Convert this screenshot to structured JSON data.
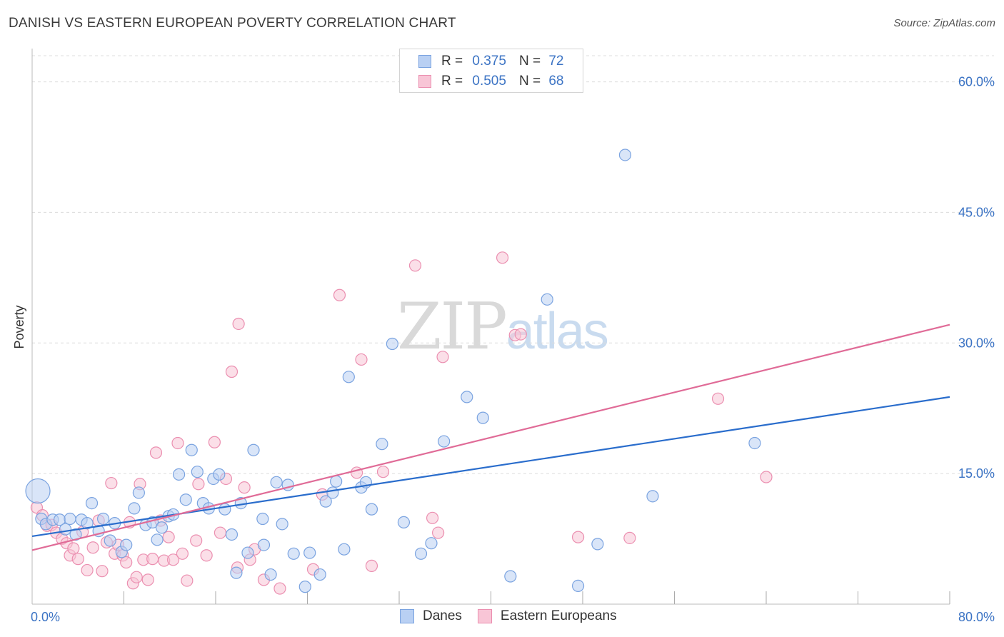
{
  "title": "DANISH VS EASTERN EUROPEAN POVERTY CORRELATION CHART",
  "source": "Source: ZipAtlas.com",
  "watermark": {
    "zip": "ZIP",
    "atlas": "atlas"
  },
  "legend_top": [
    {
      "r_label": "R =",
      "r_value": "0.375",
      "n_label": "N =",
      "n_value": "72"
    },
    {
      "r_label": "R =",
      "r_value": "0.505",
      "n_label": "N =",
      "n_value": "68"
    }
  ],
  "colors": {
    "danes_fill": "#b9d0f3",
    "danes_stroke": "#7aa3e0",
    "danes_line": "#2a6dcc",
    "ee_fill": "#f8c5d6",
    "ee_stroke": "#eb8fb0",
    "ee_line": "#e06b97",
    "grid": "#dcdcdc",
    "tick_text": "#3b73c4"
  },
  "chart_data": {
    "type": "scatter",
    "title": "DANISH VS EASTERN EUROPEAN POVERTY CORRELATION CHART",
    "xlabel": "",
    "ylabel": "Poverty",
    "xlim": [
      0,
      80
    ],
    "ylim": [
      0,
      63
    ],
    "x_tick_labels": [
      "0.0%",
      "80.0%"
    ],
    "y_ticks": [
      15,
      30,
      45,
      60
    ],
    "y_tick_labels": [
      "15.0%",
      "30.0%",
      "45.0%",
      "60.0%"
    ],
    "grid": true,
    "legend": "bottom-center",
    "series": [
      {
        "name": "Danes",
        "r": 0.375,
        "n": 72,
        "trend": [
          [
            0,
            7.8
          ],
          [
            80,
            23.8
          ]
        ],
        "points": [
          [
            0.5,
            13.0
          ],
          [
            0.8,
            9.8
          ],
          [
            1.2,
            9.2
          ],
          [
            1.8,
            9.7
          ],
          [
            2.4,
            9.7
          ],
          [
            2.9,
            8.6
          ],
          [
            3.3,
            9.8
          ],
          [
            3.8,
            8.0
          ],
          [
            4.3,
            9.7
          ],
          [
            4.8,
            9.3
          ],
          [
            5.2,
            11.6
          ],
          [
            5.8,
            8.4
          ],
          [
            6.2,
            9.8
          ],
          [
            6.8,
            7.3
          ],
          [
            7.2,
            9.3
          ],
          [
            7.8,
            6.0
          ],
          [
            8.2,
            6.8
          ],
          [
            8.9,
            11.0
          ],
          [
            9.3,
            12.8
          ],
          [
            9.9,
            9.1
          ],
          [
            10.5,
            9.4
          ],
          [
            10.9,
            7.4
          ],
          [
            11.3,
            8.8
          ],
          [
            11.9,
            10.1
          ],
          [
            12.3,
            10.3
          ],
          [
            12.8,
            14.9
          ],
          [
            13.4,
            12.0
          ],
          [
            13.9,
            17.7
          ],
          [
            14.4,
            15.2
          ],
          [
            14.9,
            11.6
          ],
          [
            15.4,
            11.0
          ],
          [
            15.8,
            14.4
          ],
          [
            16.3,
            14.9
          ],
          [
            16.8,
            10.9
          ],
          [
            17.4,
            8.0
          ],
          [
            17.8,
            3.6
          ],
          [
            18.2,
            11.6
          ],
          [
            18.8,
            5.9
          ],
          [
            19.3,
            17.7
          ],
          [
            20.1,
            9.8
          ],
          [
            20.2,
            6.8
          ],
          [
            20.8,
            3.4
          ],
          [
            21.3,
            14.0
          ],
          [
            21.8,
            9.2
          ],
          [
            22.3,
            13.7
          ],
          [
            22.8,
            5.8
          ],
          [
            23.8,
            2.0
          ],
          [
            24.2,
            5.9
          ],
          [
            25.1,
            3.4
          ],
          [
            25.6,
            11.8
          ],
          [
            26.2,
            12.8
          ],
          [
            26.5,
            14.1
          ],
          [
            27.2,
            6.3
          ],
          [
            27.6,
            26.1
          ],
          [
            28.7,
            13.4
          ],
          [
            29.1,
            14.0
          ],
          [
            29.6,
            10.9
          ],
          [
            30.5,
            18.4
          ],
          [
            31.4,
            29.9
          ],
          [
            32.4,
            9.4
          ],
          [
            33.9,
            5.8
          ],
          [
            34.8,
            7.0
          ],
          [
            35.9,
            18.7
          ],
          [
            37.9,
            23.8
          ],
          [
            39.3,
            21.4
          ],
          [
            41.7,
            3.2
          ],
          [
            44.9,
            35.0
          ],
          [
            47.6,
            2.1
          ],
          [
            49.3,
            6.9
          ],
          [
            51.7,
            51.6
          ],
          [
            54.1,
            12.4
          ],
          [
            63.0,
            18.5
          ]
        ]
      },
      {
        "name": "Eastern Europeans",
        "r": 0.505,
        "n": 68,
        "trend": [
          [
            0,
            6.2
          ],
          [
            80,
            32.1
          ]
        ],
        "points": [
          [
            0.4,
            11.1
          ],
          [
            0.9,
            10.2
          ],
          [
            1.3,
            9.0
          ],
          [
            1.7,
            9.1
          ],
          [
            2.1,
            8.2
          ],
          [
            2.6,
            7.5
          ],
          [
            3.0,
            7.0
          ],
          [
            3.3,
            5.6
          ],
          [
            3.6,
            6.4
          ],
          [
            4.0,
            5.2
          ],
          [
            4.4,
            8.3
          ],
          [
            4.8,
            3.9
          ],
          [
            5.3,
            6.5
          ],
          [
            5.8,
            9.6
          ],
          [
            6.1,
            3.8
          ],
          [
            6.5,
            7.1
          ],
          [
            6.9,
            13.9
          ],
          [
            7.2,
            5.8
          ],
          [
            7.5,
            6.8
          ],
          [
            7.9,
            5.6
          ],
          [
            8.2,
            4.8
          ],
          [
            8.5,
            9.4
          ],
          [
            8.8,
            2.4
          ],
          [
            9.1,
            3.1
          ],
          [
            9.4,
            13.8
          ],
          [
            9.7,
            5.1
          ],
          [
            10.1,
            2.8
          ],
          [
            10.5,
            5.2
          ],
          [
            10.8,
            17.4
          ],
          [
            11.2,
            9.6
          ],
          [
            11.5,
            5.0
          ],
          [
            11.9,
            7.7
          ],
          [
            12.3,
            5.1
          ],
          [
            12.7,
            18.5
          ],
          [
            13.1,
            5.8
          ],
          [
            13.5,
            2.7
          ],
          [
            14.3,
            7.3
          ],
          [
            14.5,
            13.8
          ],
          [
            15.2,
            5.6
          ],
          [
            15.9,
            18.6
          ],
          [
            16.4,
            8.2
          ],
          [
            16.9,
            14.4
          ],
          [
            17.4,
            26.7
          ],
          [
            17.9,
            4.2
          ],
          [
            18.0,
            32.2
          ],
          [
            18.5,
            13.4
          ],
          [
            19.0,
            5.1
          ],
          [
            19.4,
            6.3
          ],
          [
            20.2,
            2.8
          ],
          [
            21.6,
            1.8
          ],
          [
            24.5,
            4.0
          ],
          [
            25.3,
            12.6
          ],
          [
            26.8,
            35.5
          ],
          [
            28.3,
            15.1
          ],
          [
            28.7,
            28.1
          ],
          [
            29.6,
            4.4
          ],
          [
            30.6,
            15.2
          ],
          [
            33.4,
            38.9
          ],
          [
            34.9,
            9.9
          ],
          [
            35.4,
            8.2
          ],
          [
            35.8,
            28.4
          ],
          [
            41.0,
            39.8
          ],
          [
            42.1,
            30.9
          ],
          [
            42.6,
            31.0
          ],
          [
            47.6,
            7.7
          ],
          [
            52.1,
            7.6
          ],
          [
            59.8,
            23.6
          ],
          [
            64.0,
            14.6
          ]
        ]
      }
    ]
  },
  "bottom_legend": [
    {
      "name": "Danes"
    },
    {
      "name": "Eastern Europeans"
    }
  ]
}
